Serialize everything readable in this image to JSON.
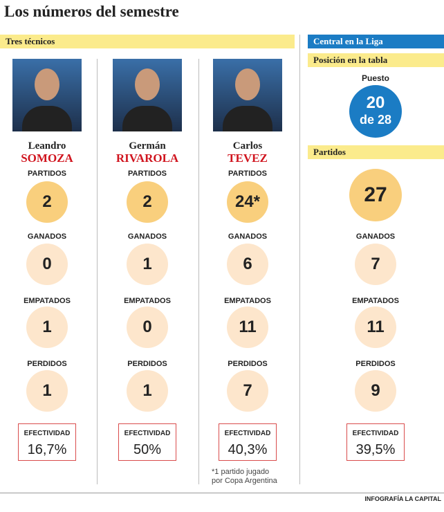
{
  "title": "Los números del semestre",
  "credit": "INFOGRAFÍA LA CAPITAL",
  "stat_labels": [
    "PARTIDOS",
    "GANADOS",
    "EMPATADOS",
    "PERDIDOS"
  ],
  "efectividad_label": "EFECTIVIDAD",
  "left_section": {
    "header": "Tres técnicos",
    "coaches": [
      {
        "first_name": "Leandro",
        "last_name": "SOMOZA",
        "stats": [
          "2",
          "0",
          "1",
          "1"
        ],
        "efectividad": "16,7%"
      },
      {
        "first_name": "Germán",
        "last_name": "RIVAROLA",
        "stats": [
          "2",
          "1",
          "0",
          "1"
        ],
        "efectividad": "50%"
      },
      {
        "first_name": "Carlos",
        "last_name": "TEVEZ",
        "stats": [
          "24*",
          "6",
          "11",
          "7"
        ],
        "efectividad": "40,3%",
        "footnote": [
          "*1 partido jugado",
          "por Copa Argentina"
        ]
      }
    ]
  },
  "right_section": {
    "header": "Central en la Liga",
    "position": {
      "header": "Posición en la tabla",
      "label": "Puesto",
      "value": "20",
      "of": "de 28"
    },
    "matches_header": "Partidos",
    "stats": [
      "27",
      "7",
      "11",
      "9"
    ],
    "efectividad": "39,5%"
  }
}
